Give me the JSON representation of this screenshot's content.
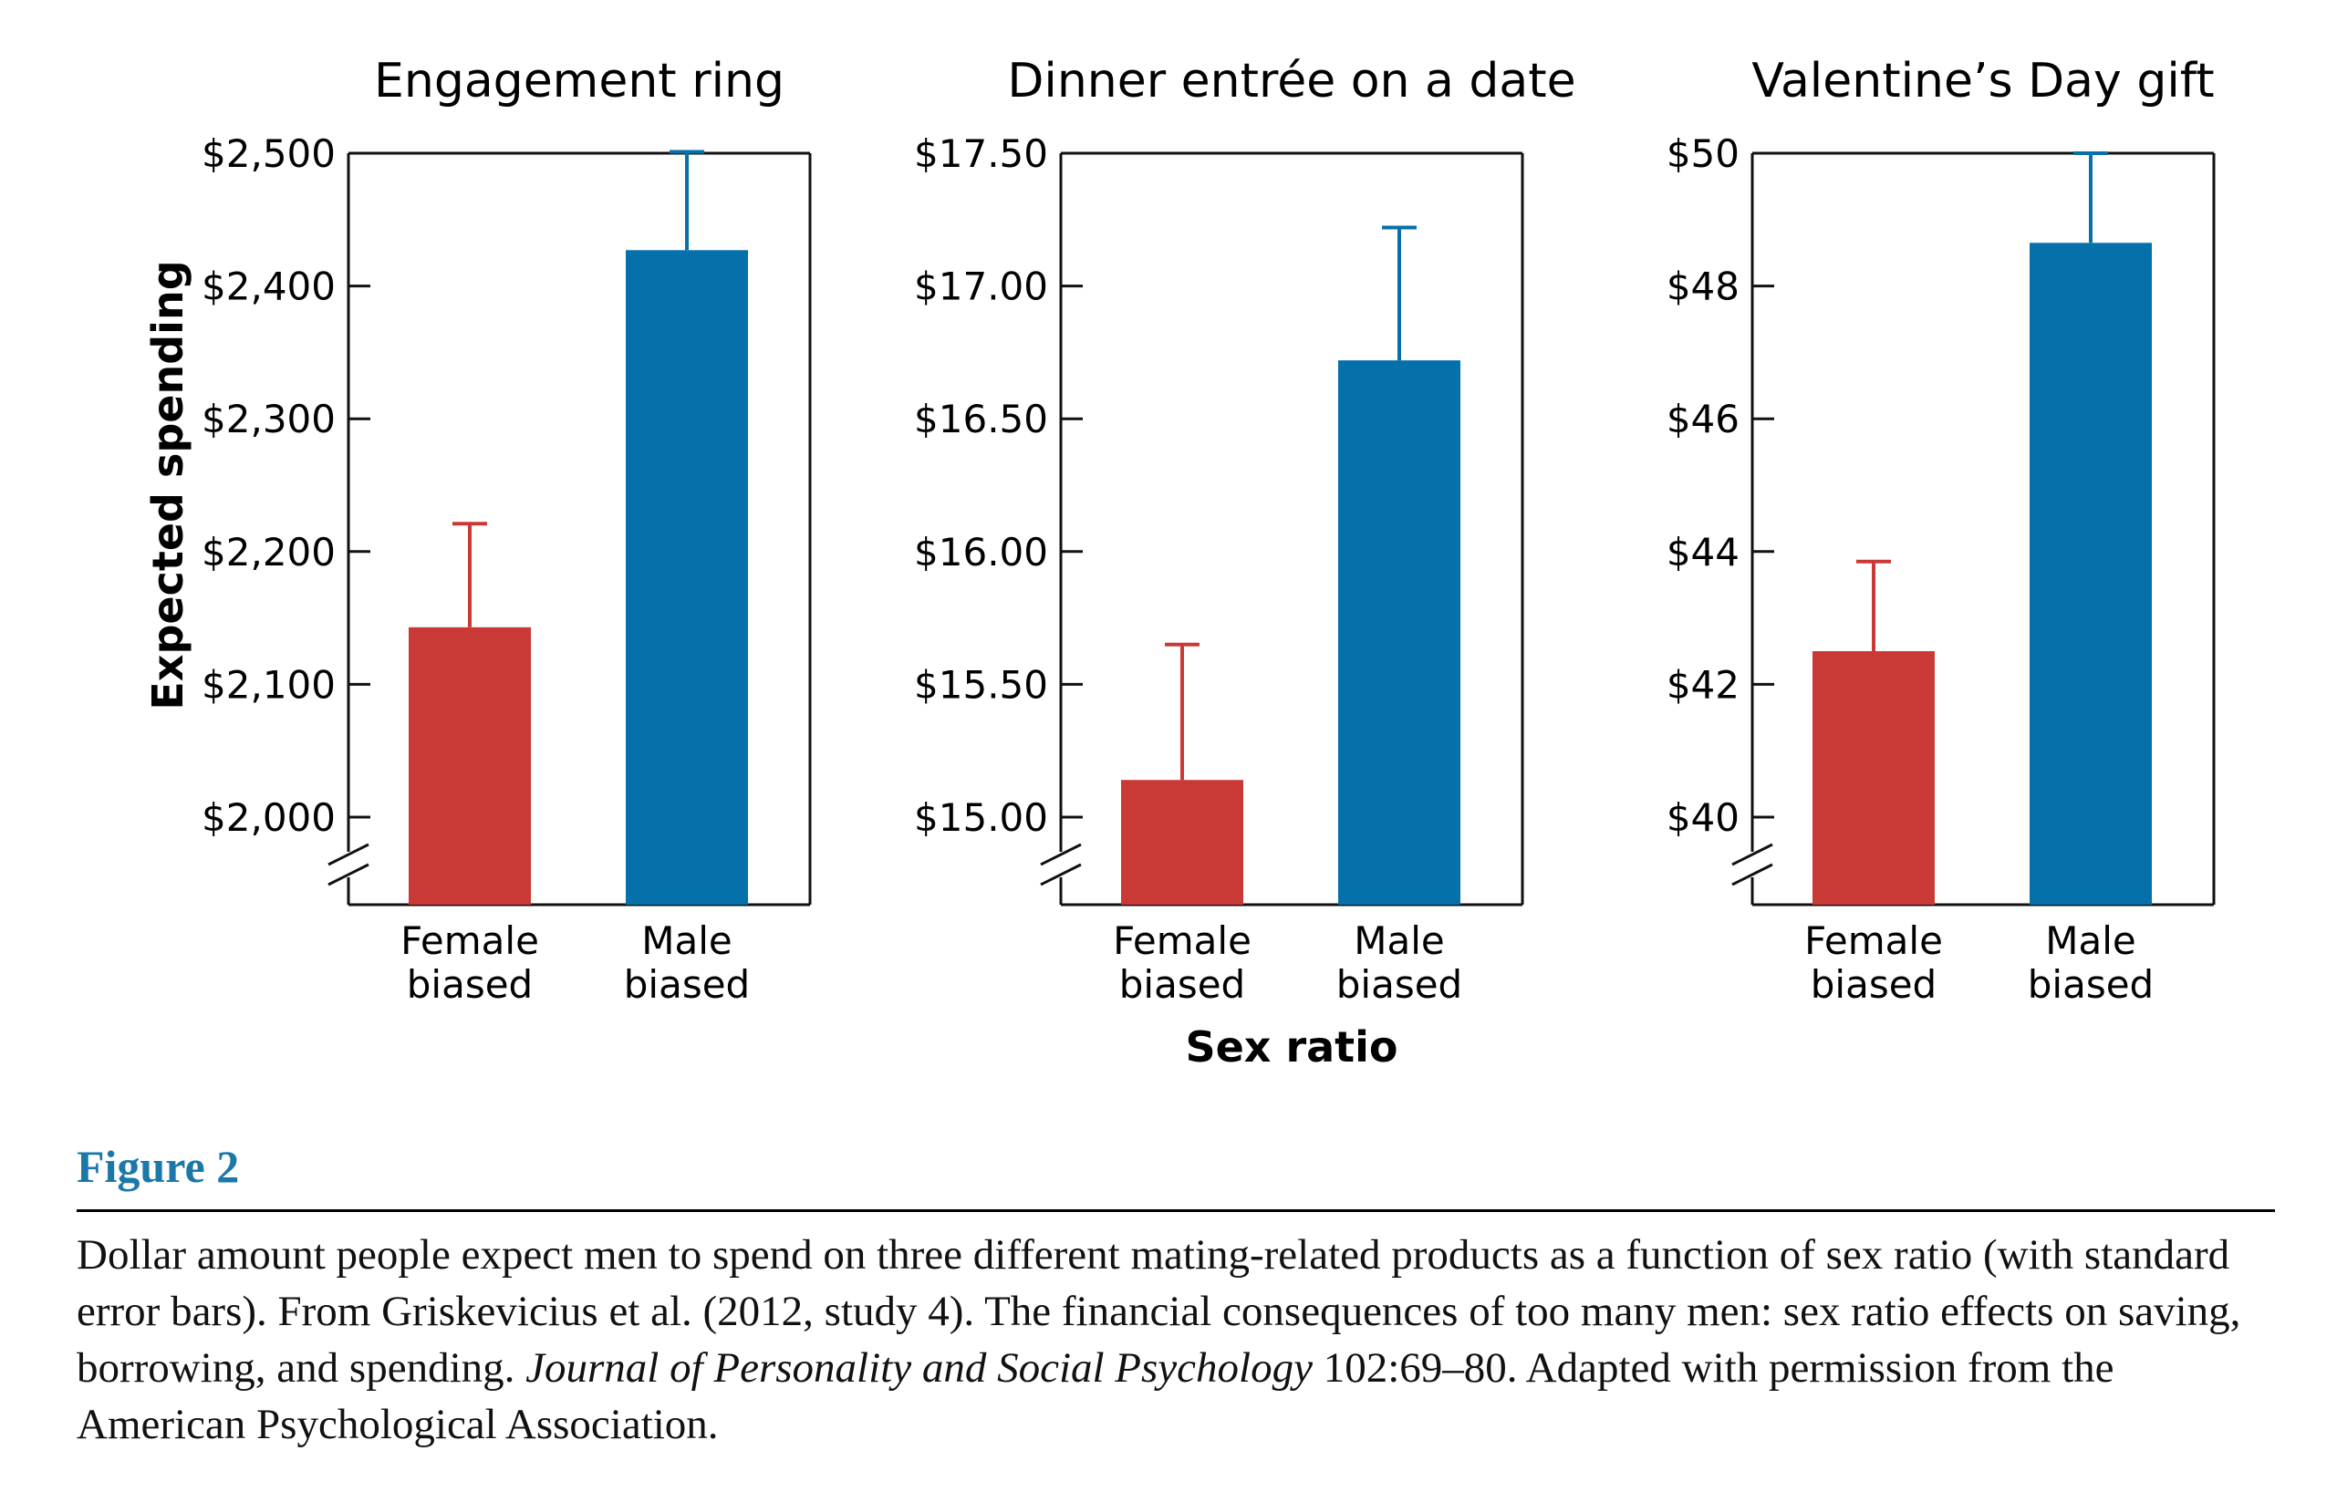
{
  "figure": {
    "label": "Figure 2",
    "caption_before_journal": "Dollar amount people expect men to spend on three different mating-related products as a function of sex ratio (with standard error bars). From Griskevicius et al. (2012, study 4). The financial consequences of too many men: sex ratio effects on saving, borrowing, and spending. ",
    "caption_journal": "Journal of Personality and Social Psychology",
    "caption_after_journal": " 102:69–80. Adapted with permission from the American Psychological Association."
  },
  "colors": {
    "female_biased": "#c93a36",
    "male_biased": "#0670ab"
  },
  "shared": {
    "ylabel": "Expected spending",
    "xlabel": "Sex ratio",
    "axis_break": true
  },
  "chart_data": [
    {
      "type": "bar",
      "title": "Engagement ring",
      "categories": [
        "Female\nbiased",
        "Male\nbiased"
      ],
      "values": [
        2143,
        2427
      ],
      "error_upper": [
        2221,
        2501
      ],
      "ylim": [
        2000,
        2500
      ],
      "yticks": [
        2000,
        2100,
        2200,
        2300,
        2400,
        2500
      ],
      "ytick_labels": [
        "$2,000",
        "$2,100",
        "$2,200",
        "$2,300",
        "$2,400",
        "$2,500"
      ]
    },
    {
      "type": "bar",
      "title": "Dinner entrée on a date",
      "categories": [
        "Female\nbiased",
        "Male\nbiased"
      ],
      "values": [
        15.14,
        16.72
      ],
      "error_upper": [
        15.65,
        17.22
      ],
      "ylim": [
        15.0,
        17.5
      ],
      "yticks": [
        15.0,
        15.5,
        16.0,
        16.5,
        17.0,
        17.5
      ],
      "ytick_labels": [
        "$15.00",
        "$15.50",
        "$16.00",
        "$16.50",
        "$17.00",
        "$17.50"
      ]
    },
    {
      "type": "bar",
      "title": "Valentine’s Day gift",
      "categories": [
        "Female\nbiased",
        "Male\nbiased"
      ],
      "values": [
        42.5,
        48.65
      ],
      "error_upper": [
        43.85,
        50.0
      ],
      "ylim": [
        40,
        50
      ],
      "yticks": [
        40,
        42,
        44,
        46,
        48,
        50
      ],
      "ytick_labels": [
        "$40",
        "$42",
        "$44",
        "$46",
        "$48",
        "$50"
      ]
    }
  ]
}
